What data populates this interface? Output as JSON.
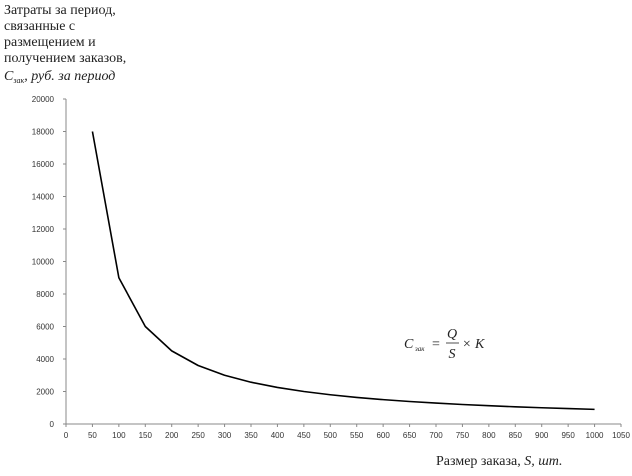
{
  "chart_data": {
    "type": "line",
    "ylabel_lines": [
      "Затраты за период,",
      "связанные с",
      "размещением и",
      "получением заказов,"
    ],
    "ylabel_symbol": "C",
    "ylabel_subscript": "зак",
    "ylabel_unit": ", руб. за период",
    "xlabel_text": "Размер заказа, ",
    "xlabel_symbol": "S",
    "xlabel_unit": ", шт.",
    "formula": {
      "lhs": "C",
      "sub": "зак",
      "eq": "=",
      "num": "Q",
      "den": "S",
      "rest": "× K"
    },
    "x": [
      50,
      100,
      150,
      200,
      250,
      300,
      350,
      400,
      450,
      500,
      550,
      600,
      650,
      700,
      750,
      800,
      850,
      900,
      950,
      1000
    ],
    "values": [
      18000,
      9000,
      6000,
      4500,
      3600,
      3000,
      2571,
      2250,
      2000,
      1800,
      1636,
      1500,
      1385,
      1286,
      1200,
      1125,
      1059,
      1000,
      947,
      900
    ],
    "color": "#000000",
    "xlim": [
      0,
      1050
    ],
    "xticks": [
      0,
      50,
      100,
      150,
      200,
      250,
      300,
      350,
      400,
      450,
      500,
      550,
      600,
      650,
      700,
      750,
      800,
      850,
      900,
      950,
      1000,
      1050
    ],
    "ylim": [
      0,
      20000
    ],
    "yticks": [
      0,
      2000,
      4000,
      6000,
      8000,
      10000,
      12000,
      14000,
      16000,
      18000,
      20000
    ],
    "grid": false
  }
}
